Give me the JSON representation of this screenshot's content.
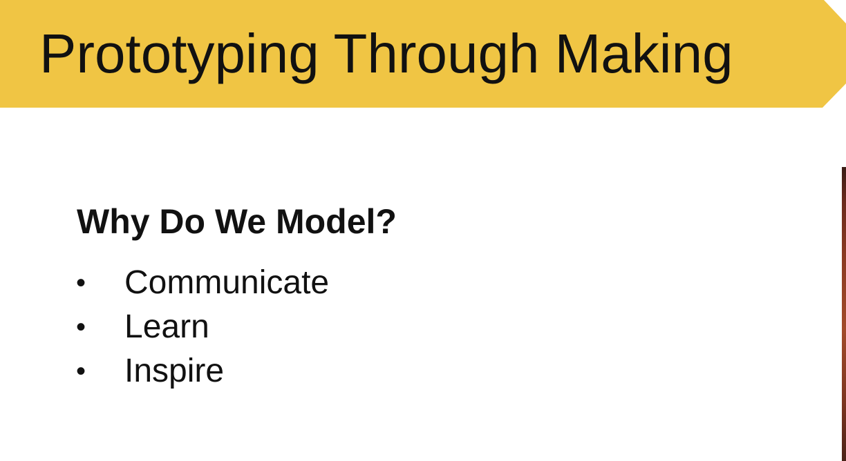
{
  "slide": {
    "title": "Prototyping Through Making",
    "subtitle": "Why Do We Model?",
    "bullets": [
      {
        "marker": "•",
        "text": "Communicate"
      },
      {
        "marker": "•",
        "text": "Learn"
      },
      {
        "marker": "•",
        "text": "Inspire"
      }
    ]
  },
  "colors": {
    "banner": "#F0C544",
    "text": "#111111",
    "background": "#FFFFFF"
  }
}
